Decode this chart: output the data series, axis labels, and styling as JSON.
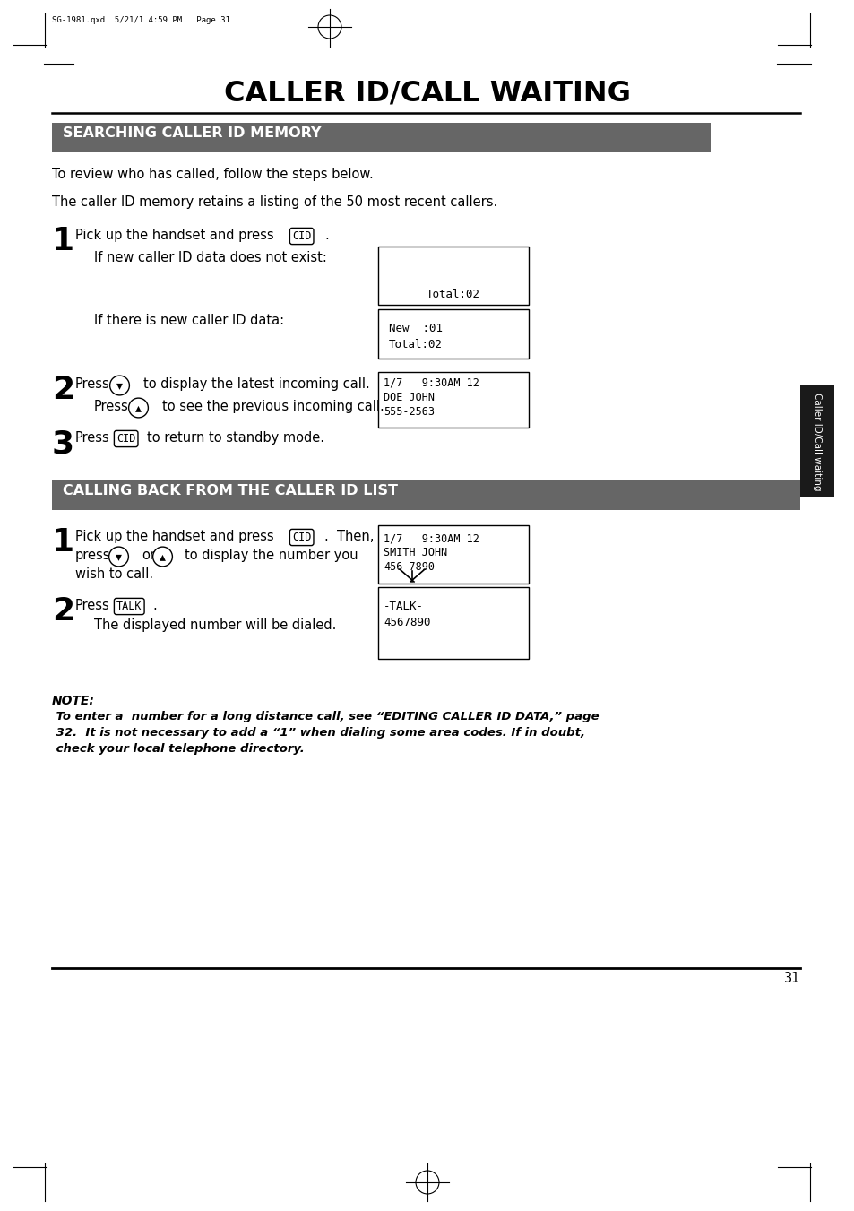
{
  "page_title": "CALLER ID/CALL WAITING",
  "section1_title": "SEARCHING CALLER ID MEMORY",
  "section2_title": "CALLING BACK FROM THE CALLER ID LIST",
  "section_color": "#666666",
  "section_text_color": "#ffffff",
  "background_color": "#ffffff",
  "header_text": "SG-1981.qxd  5/21/1 4:59 PM   Page 31",
  "page_number": "31",
  "tab_text": "Caller ID/Call waiting",
  "tab_color": "#1a1a1a",
  "body_text_color": "#000000",
  "para1": "To review who has called, follow the steps below.",
  "para2": "The caller ID memory retains a listing of the 50 most recent callers.",
  "display1_text": "Total:02",
  "display2_line1": "New  :01",
  "display2_line2": "Total:02",
  "display3_line1": "1/7   9:30AM 12",
  "display3_line2": "DOE JOHN",
  "display3_line3": "555-2563",
  "cb_display1_line1": "1/7   9:30AM 12",
  "cb_display1_line2": "SMITH JOHN",
  "cb_display1_line3": "456-7890",
  "cb_display2_line1": "-TALK-",
  "cb_display2_line2": "4567890",
  "note_label": "NOTE:",
  "note_line1": " To enter a  number for a long distance call, see “EDITING CALLER ID DATA,” page",
  "note_line2": " 32.  It is not necessary to add a “1” when dialing some area codes. If in doubt,",
  "note_line3": " check your local telephone directory."
}
